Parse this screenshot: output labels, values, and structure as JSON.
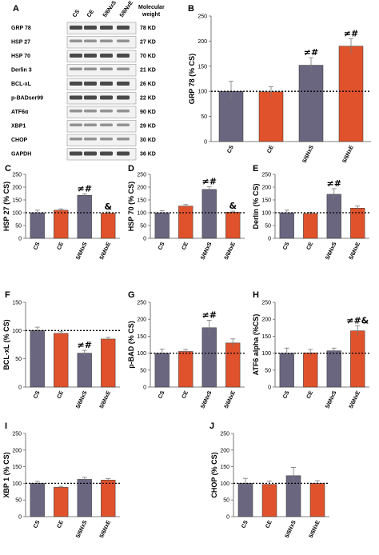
{
  "colors": {
    "purple": "#6a6680",
    "orange": "#e0522b",
    "axis": "#555555",
    "dash": "#000000"
  },
  "chart_data": [
    {
      "id": "B",
      "type": "bar",
      "panel_label": "B",
      "ylabel": "GRP 78 (% CS)",
      "categories": [
        "CS",
        "CE",
        "5/6NxS",
        "5/6NxE"
      ],
      "values": [
        100,
        99,
        152,
        190
      ],
      "errors": [
        20,
        10,
        15,
        15
      ],
      "ylim": [
        0,
        250
      ],
      "yticks": [
        0,
        50,
        100,
        150,
        200,
        250
      ],
      "colors": [
        "purple",
        "orange",
        "purple",
        "orange"
      ],
      "annotations": [
        "",
        "",
        "≠#",
        "≠#"
      ],
      "reference_line": 100
    },
    {
      "id": "C",
      "type": "bar",
      "panel_label": "C",
      "ylabel": "HSP 27 (% CS)",
      "categories": [
        "CS",
        "CE",
        "5/6NxS",
        "5/6NxE"
      ],
      "values": [
        100,
        110,
        168,
        98
      ],
      "errors": [
        10,
        5,
        6,
        5
      ],
      "ylim": [
        0,
        250
      ],
      "yticks": [
        0,
        50,
        100,
        150,
        200,
        250
      ],
      "colors": [
        "purple",
        "orange",
        "purple",
        "orange"
      ],
      "annotations": [
        "",
        "",
        "≠#",
        "&"
      ],
      "reference_line": 100
    },
    {
      "id": "D",
      "type": "bar",
      "panel_label": "D",
      "ylabel": "HSP 70 (% CS)",
      "categories": [
        "CS",
        "CE",
        "5/6NxS",
        "5/6NxE"
      ],
      "values": [
        100,
        126,
        191,
        102
      ],
      "errors": [
        8,
        6,
        10,
        4
      ],
      "ylim": [
        0,
        250
      ],
      "yticks": [
        0,
        50,
        100,
        150,
        200,
        250
      ],
      "colors": [
        "purple",
        "orange",
        "purple",
        "orange"
      ],
      "annotations": [
        "",
        "",
        "≠#",
        "&"
      ],
      "reference_line": 100
    },
    {
      "id": "E",
      "type": "bar",
      "panel_label": "E",
      "ylabel": "Derlin (% CS)",
      "categories": [
        "CS",
        "CE",
        "5/6NxS",
        "5/6NxE"
      ],
      "values": [
        100,
        97,
        172,
        118
      ],
      "errors": [
        10,
        5,
        22,
        8
      ],
      "ylim": [
        0,
        250
      ],
      "yticks": [
        0,
        50,
        100,
        150,
        200,
        250
      ],
      "colors": [
        "purple",
        "orange",
        "purple",
        "orange"
      ],
      "annotations": [
        "",
        "",
        "≠#",
        ""
      ],
      "reference_line": 100
    },
    {
      "id": "F",
      "type": "bar",
      "panel_label": "F",
      "ylabel": "BCL-xL (% CS)",
      "categories": [
        "CS",
        "CE",
        "5/6NxS",
        "5/6NxE"
      ],
      "values": [
        100,
        95,
        60,
        85
      ],
      "errors": [
        6,
        3,
        5,
        3
      ],
      "ylim": [
        0,
        150
      ],
      "yticks": [
        0,
        50,
        100,
        150
      ],
      "colors": [
        "purple",
        "orange",
        "purple",
        "orange"
      ],
      "annotations": [
        "",
        "",
        "≠#",
        ""
      ],
      "reference_line": 100
    },
    {
      "id": "G",
      "type": "bar",
      "panel_label": "G",
      "ylabel": "p-BAD (% CS)",
      "categories": [
        "CS",
        "CE",
        "5/6NxS",
        "5/6NxE"
      ],
      "values": [
        100,
        105,
        175,
        130
      ],
      "errors": [
        12,
        6,
        22,
        12
      ],
      "ylim": [
        0,
        250
      ],
      "yticks": [
        0,
        50,
        100,
        150,
        200,
        250
      ],
      "colors": [
        "purple",
        "orange",
        "purple",
        "orange"
      ],
      "annotations": [
        "",
        "",
        "≠#",
        ""
      ],
      "reference_line": 100
    },
    {
      "id": "H",
      "type": "bar",
      "panel_label": "H",
      "ylabel": "ATF6 alpha (%CS)",
      "categories": [
        "CS",
        "CE",
        "5/6NxS",
        "5/6NxE"
      ],
      "values": [
        100,
        101,
        107,
        166
      ],
      "errors": [
        15,
        10,
        8,
        15
      ],
      "ylim": [
        0,
        250
      ],
      "yticks": [
        0,
        50,
        100,
        150,
        200,
        250
      ],
      "colors": [
        "purple",
        "orange",
        "purple",
        "orange"
      ],
      "annotations": [
        "",
        "",
        "",
        "≠#&"
      ],
      "reference_line": 100
    },
    {
      "id": "I",
      "type": "bar",
      "panel_label": "I",
      "ylabel": "XBP 1 (% CS)",
      "categories": [
        "CS",
        "CE",
        "5/6NxS",
        "5/6NxE"
      ],
      "values": [
        100,
        88,
        112,
        110
      ],
      "errors": [
        6,
        3,
        6,
        4
      ],
      "ylim": [
        0,
        250
      ],
      "yticks": [
        0,
        50,
        100,
        150,
        200,
        250
      ],
      "colors": [
        "purple",
        "orange",
        "purple",
        "orange"
      ],
      "annotations": [
        "",
        "",
        "",
        ""
      ],
      "reference_line": 100
    },
    {
      "id": "J",
      "type": "bar",
      "panel_label": "J",
      "ylabel": "CHOP (% CS)",
      "categories": [
        "CS",
        "CE",
        "5/6NxS",
        "5/6NxE"
      ],
      "values": [
        100,
        97,
        123,
        100
      ],
      "errors": [
        15,
        10,
        25,
        8
      ],
      "ylim": [
        0,
        250
      ],
      "yticks": [
        0,
        50,
        100,
        150,
        200,
        250
      ],
      "colors": [
        "purple",
        "orange",
        "purple",
        "orange"
      ],
      "annotations": [
        "",
        "",
        "",
        ""
      ],
      "reference_line": 100
    }
  ],
  "blot": {
    "panel_label": "A",
    "lanes": [
      "CS",
      "CE",
      "5/6NxS",
      "5/6NxE"
    ],
    "mw_header": "Molecular weight",
    "rows": [
      {
        "name": "GRP 78",
        "mw": "78 KD",
        "dark": true
      },
      {
        "name": "HSP 27",
        "mw": "27 KD",
        "dark": false
      },
      {
        "name": "HSP 70",
        "mw": "70 KD",
        "dark": true
      },
      {
        "name": "Derlin 3",
        "mw": "21 KD",
        "dark": false
      },
      {
        "name": "BCL-xL",
        "mw": "26 KD",
        "dark": true
      },
      {
        "name": "p-BADser99",
        "mw": "22 KD",
        "dark": true
      },
      {
        "name": "ATF6α",
        "mw": "90 KD",
        "dark": false
      },
      {
        "name": "XBP1",
        "mw": "29 KD",
        "dark": false
      },
      {
        "name": "CHOP",
        "mw": "30 KD",
        "dark": false
      },
      {
        "name": "GAPDH",
        "mw": "36 KD",
        "dark": true
      }
    ]
  }
}
